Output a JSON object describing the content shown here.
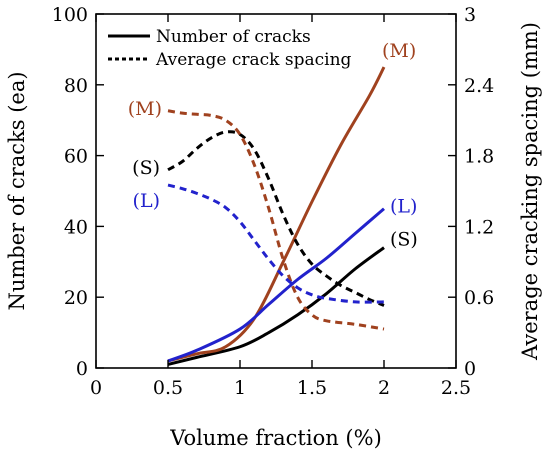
{
  "chart_data": {
    "type": "line",
    "xlabel": "Volume fraction (%)",
    "ylabel": "Number of cracks (ea)",
    "y2label": "Average cracking spacing (mm)",
    "xlim": [
      0,
      2.5
    ],
    "ylim": [
      0,
      100
    ],
    "y2lim": [
      0,
      3
    ],
    "x_ticks": [
      "0",
      "0.5",
      "1",
      "1.5",
      "2",
      "2.5"
    ],
    "y_ticks": [
      "0",
      "20",
      "40",
      "60",
      "80",
      "100"
    ],
    "y2_ticks": [
      "0",
      "0.6",
      "1.2",
      "1.8",
      "2.4",
      "3"
    ],
    "grid": false,
    "legend_position": "top-center",
    "legend": [
      {
        "label": "Number of cracks",
        "style": "solid"
      },
      {
        "label": "Average crack spacing",
        "style": "dotted"
      }
    ],
    "colors": {
      "S": "#000000",
      "M": "#a0421f",
      "L": "#2222cc"
    },
    "series": [
      {
        "group": "S",
        "metric": "cracks",
        "axis": "left",
        "style": "solid",
        "x": [
          0.5,
          0.7,
          1.0,
          1.2,
          1.4,
          1.6,
          1.8,
          2.0
        ],
        "y": [
          1,
          3,
          6,
          10,
          15,
          21,
          28,
          34
        ]
      },
      {
        "group": "M",
        "metric": "cracks",
        "axis": "left",
        "style": "solid",
        "x": [
          0.5,
          0.7,
          0.9,
          1.1,
          1.3,
          1.5,
          1.7,
          1.9,
          2.0
        ],
        "y": [
          2,
          4,
          6,
          14,
          30,
          47,
          63,
          77,
          85
        ]
      },
      {
        "group": "L",
        "metric": "cracks",
        "axis": "left",
        "style": "solid",
        "x": [
          0.5,
          0.7,
          1.0,
          1.2,
          1.4,
          1.6,
          1.8,
          2.0
        ],
        "y": [
          2,
          5,
          11,
          18,
          25,
          31,
          38,
          45
        ]
      },
      {
        "group": "S",
        "metric": "spacing",
        "axis": "right",
        "style": "dashed",
        "x": [
          0.5,
          0.6,
          0.7,
          0.8,
          0.9,
          1.0,
          1.1,
          1.2,
          1.3,
          1.4,
          1.5,
          1.6,
          1.7,
          1.8,
          1.9,
          2.0
        ],
        "y": [
          1.68,
          1.75,
          1.86,
          1.95,
          2.0,
          1.98,
          1.85,
          1.6,
          1.3,
          1.05,
          0.88,
          0.78,
          0.7,
          0.64,
          0.58,
          0.53
        ]
      },
      {
        "group": "M",
        "metric": "spacing",
        "axis": "right",
        "style": "dashed",
        "x": [
          0.5,
          0.6,
          0.7,
          0.8,
          0.9,
          1.0,
          1.1,
          1.2,
          1.3,
          1.4,
          1.5,
          1.6,
          1.8,
          2.0
        ],
        "y": [
          2.18,
          2.16,
          2.15,
          2.14,
          2.1,
          1.98,
          1.72,
          1.35,
          0.92,
          0.6,
          0.45,
          0.4,
          0.37,
          0.33
        ]
      },
      {
        "group": "L",
        "metric": "spacing",
        "axis": "right",
        "style": "dashed",
        "x": [
          0.5,
          0.6,
          0.7,
          0.8,
          0.9,
          1.0,
          1.1,
          1.2,
          1.3,
          1.4,
          1.5,
          1.6,
          1.8,
          2.0
        ],
        "y": [
          1.55,
          1.52,
          1.48,
          1.43,
          1.36,
          1.24,
          1.08,
          0.92,
          0.78,
          0.68,
          0.62,
          0.59,
          0.56,
          0.56
        ]
      }
    ],
    "annotations": [
      {
        "text": "(S)",
        "group": "S",
        "near": "spacing-start"
      },
      {
        "text": "(M)",
        "group": "M",
        "near": "spacing-start"
      },
      {
        "text": "(L)",
        "group": "L",
        "near": "spacing-start"
      },
      {
        "text": "(M)",
        "group": "M",
        "near": "cracks-end"
      },
      {
        "text": "(L)",
        "group": "L",
        "near": "cracks-end"
      },
      {
        "text": "(S)",
        "group": "S",
        "near": "cracks-end"
      }
    ]
  }
}
